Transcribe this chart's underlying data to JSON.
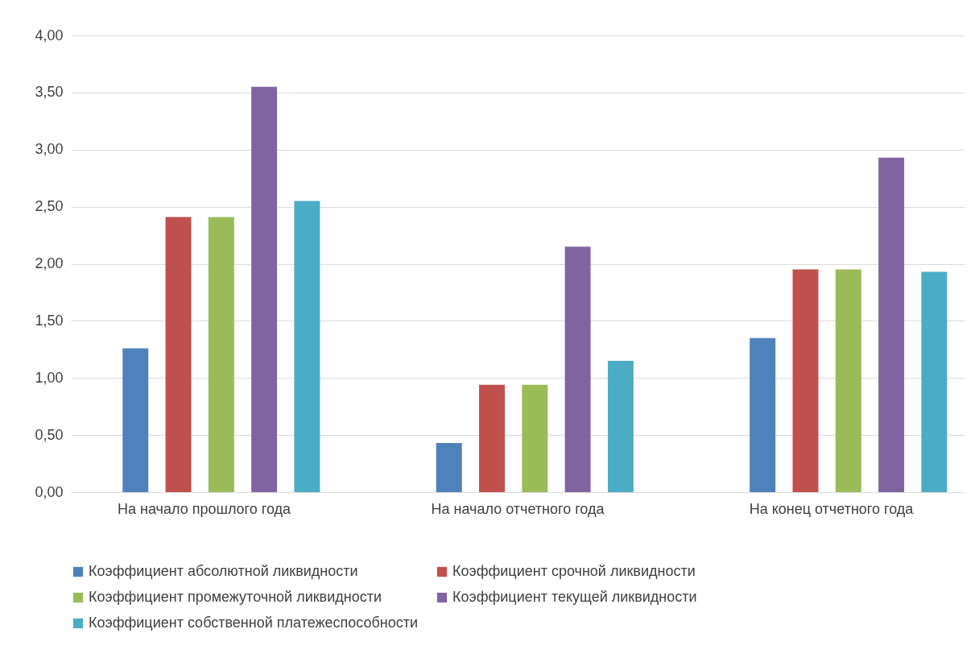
{
  "chart_data": {
    "type": "bar",
    "categories": [
      "На начало прошлого года",
      "На начало отчетного года",
      "На конец отчетного года"
    ],
    "series": [
      {
        "name": "Коэффициент абсолютной  ликвидности",
        "color": "#4f81bd",
        "values": [
          1.26,
          0.43,
          1.35
        ]
      },
      {
        "name": "Коэффициент срочной ликвидности",
        "color": "#c0504d",
        "values": [
          2.41,
          0.94,
          1.95
        ]
      },
      {
        "name": "Коэффициент промежуточной ликвидности",
        "color": "#9bbb59",
        "values": [
          2.41,
          0.94,
          1.95
        ]
      },
      {
        "name": "Коэффициент текущей ликвидности",
        "color": "#8064a2",
        "values": [
          3.55,
          2.15,
          2.93
        ]
      },
      {
        "name": "Коэффициент собственной платежеспособности",
        "color": "#4bacc6",
        "values": [
          2.55,
          1.15,
          1.93
        ]
      }
    ],
    "ylim": [
      0,
      4
    ],
    "yticks": [
      {
        "value": 0,
        "label": "0,00"
      },
      {
        "value": 0.5,
        "label": "0,50"
      },
      {
        "value": 1,
        "label": "1,00"
      },
      {
        "value": 1.5,
        "label": "1,50"
      },
      {
        "value": 2,
        "label": "2,00"
      },
      {
        "value": 2.5,
        "label": "2,50"
      },
      {
        "value": 3,
        "label": "3,00"
      },
      {
        "value": 3.5,
        "label": "3,50"
      },
      {
        "value": 4,
        "label": "4,00"
      }
    ],
    "grid": "y",
    "legend": "bottom"
  }
}
